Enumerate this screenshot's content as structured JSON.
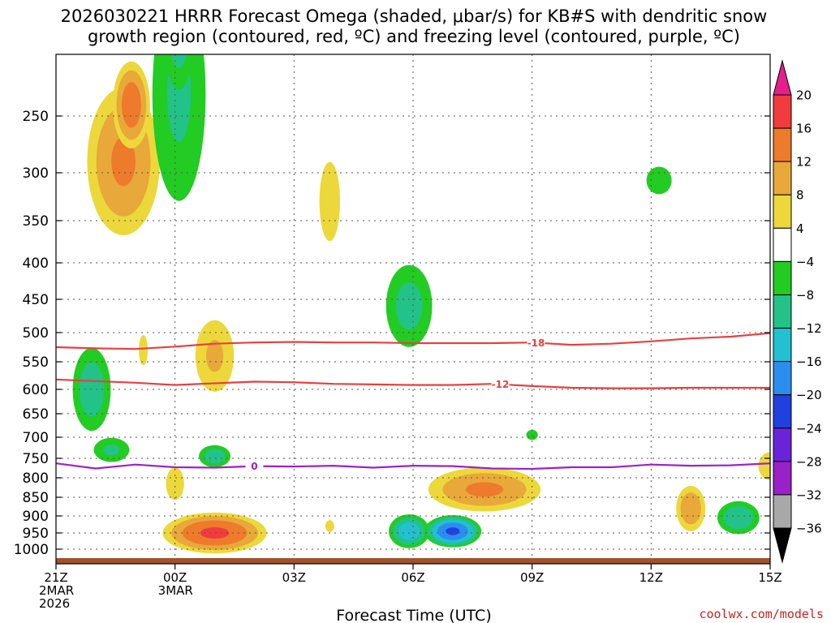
{
  "chart_data": {
    "type": "time-height contour",
    "title_line1": "2026030221 HRRR Forecast Omega (shaded, μbar/s) for KB#S with dendritic snow",
    "title_line2": "growth region (contoured, red, ºC) and freezing level (contoured, purple, ºC)",
    "xlabel": "Forecast Time (UTC)",
    "credit": "coolwx.com/models",
    "x_range_hours": [
      0,
      18
    ],
    "x_ticks": [
      {
        "hour": 0,
        "lines": [
          "21Z",
          "2MAR",
          "2026"
        ]
      },
      {
        "hour": 3,
        "lines": [
          "00Z",
          "3MAR"
        ]
      },
      {
        "hour": 6,
        "lines": [
          "03Z"
        ]
      },
      {
        "hour": 9,
        "lines": [
          "06Z"
        ]
      },
      {
        "hour": 12,
        "lines": [
          "09Z"
        ]
      },
      {
        "hour": 15,
        "lines": [
          "12Z"
        ]
      },
      {
        "hour": 18,
        "lines": [
          "15Z"
        ]
      }
    ],
    "y_ticks_hPa": [
      250,
      300,
      350,
      400,
      450,
      500,
      550,
      600,
      650,
      700,
      750,
      800,
      850,
      900,
      950,
      1000
    ],
    "y_range_hPa": [
      200,
      1030
    ],
    "colorbar": {
      "labels": [
        "20",
        "16",
        "12",
        "8",
        "4",
        "−4",
        "−8",
        "−12",
        "−16",
        "−20",
        "−24",
        "−28",
        "−32",
        "−36"
      ],
      "bins": [
        {
          "lo": 16,
          "hi": 20,
          "color": "#f03c3c"
        },
        {
          "lo": 12,
          "hi": 16,
          "color": "#ee7a2c"
        },
        {
          "lo": 8,
          "hi": 12,
          "color": "#e8a83a"
        },
        {
          "lo": 4,
          "hi": 8,
          "color": "#ecd83a"
        },
        {
          "lo": -4,
          "hi": 4,
          "color": "#ffffff"
        },
        {
          "lo": -8,
          "hi": -4,
          "color": "#22cc22"
        },
        {
          "lo": -12,
          "hi": -8,
          "color": "#22c288"
        },
        {
          "lo": -16,
          "hi": -12,
          "color": "#22c0d0"
        },
        {
          "lo": -20,
          "hi": -16,
          "color": "#2a8ef0"
        },
        {
          "lo": -24,
          "hi": -20,
          "color": "#2040e0"
        },
        {
          "lo": -28,
          "hi": -24,
          "color": "#6a24d8"
        },
        {
          "lo": -32,
          "hi": -28,
          "color": "#9a20c8"
        },
        {
          "lo": -36,
          "hi": -32,
          "color": "#a8a8a8"
        }
      ],
      "over_color": "#e61e8c",
      "under_color": "#000000"
    },
    "isotherms": [
      {
        "name": "-18",
        "label": "-18",
        "color": "#e84040",
        "label_hour": 12.1,
        "points": [
          [
            0,
            525
          ],
          [
            1,
            527
          ],
          [
            2,
            528
          ],
          [
            3,
            524
          ],
          [
            4,
            519
          ],
          [
            5,
            517
          ],
          [
            6,
            516
          ],
          [
            7,
            517
          ],
          [
            8,
            517
          ],
          [
            9,
            518
          ],
          [
            10,
            518
          ],
          [
            11,
            518
          ],
          [
            12,
            517
          ],
          [
            13,
            521
          ],
          [
            14,
            519
          ],
          [
            15,
            515
          ],
          [
            16,
            510
          ],
          [
            17,
            507
          ],
          [
            18,
            501
          ]
        ]
      },
      {
        "name": "-12",
        "label": "-12",
        "color": "#e84040",
        "label_hour": 11.2,
        "points": [
          [
            0,
            582
          ],
          [
            1,
            585
          ],
          [
            2,
            588
          ],
          [
            3,
            592
          ],
          [
            4,
            589
          ],
          [
            5,
            586
          ],
          [
            6,
            587
          ],
          [
            7,
            590
          ],
          [
            8,
            591
          ],
          [
            9,
            592
          ],
          [
            10,
            592
          ],
          [
            11,
            590
          ],
          [
            12,
            594
          ],
          [
            13,
            597
          ],
          [
            14,
            598
          ],
          [
            15,
            598
          ],
          [
            16,
            597
          ],
          [
            17,
            597
          ],
          [
            18,
            597
          ]
        ]
      },
      {
        "name": "0",
        "label": "0",
        "color": "#a020c8",
        "label_hour": 5.0,
        "points": [
          [
            0,
            763
          ],
          [
            1,
            776
          ],
          [
            2,
            766
          ],
          [
            3,
            773
          ],
          [
            4,
            774
          ],
          [
            5,
            770
          ],
          [
            6,
            771
          ],
          [
            7,
            769
          ],
          [
            8,
            774
          ],
          [
            9,
            769
          ],
          [
            10,
            770
          ],
          [
            11,
            776
          ],
          [
            12,
            777
          ],
          [
            13,
            773
          ],
          [
            14,
            773
          ],
          [
            15,
            766
          ],
          [
            16,
            769
          ],
          [
            17,
            768
          ],
          [
            18,
            763
          ]
        ]
      }
    ],
    "omega_cells": [
      {
        "t": 1.7,
        "p": 290,
        "dt": 1.1,
        "dp": 95,
        "peak": 13
      },
      {
        "t": 1.9,
        "p": 240,
        "dt": 0.55,
        "dp": 45,
        "peak": 15
      },
      {
        "t": 3.1,
        "p": 230,
        "dt": 0.9,
        "dp": 140,
        "peak": -9
      },
      {
        "t": 3.1,
        "p": 170,
        "dt": 0.5,
        "dp": 70,
        "peak": -11
      },
      {
        "t": 6.9,
        "p": 330,
        "dt": 0.45,
        "dp": 80,
        "peak": 6
      },
      {
        "t": 15.2,
        "p": 308,
        "dt": 0.55,
        "dp": 25,
        "peak": -6
      },
      {
        "t": 8.9,
        "p": 460,
        "dt": 0.75,
        "dp": 85,
        "peak": -10
      },
      {
        "t": 0.9,
        "p": 600,
        "dt": 0.6,
        "dp": 110,
        "peak": -11
      },
      {
        "t": 1.4,
        "p": 730,
        "dt": 0.6,
        "dp": 40,
        "peak": -9
      },
      {
        "t": 2.2,
        "p": 530,
        "dt": 0.25,
        "dp": 60,
        "peak": 5
      },
      {
        "t": 4.0,
        "p": 540,
        "dt": 0.65,
        "dp": 90,
        "peak": 9
      },
      {
        "t": 4.0,
        "p": 745,
        "dt": 0.5,
        "dp": 35,
        "peak": -11
      },
      {
        "t": 3.0,
        "p": 815,
        "dt": 0.35,
        "dp": 65,
        "peak": 7
      },
      {
        "t": 4.0,
        "p": 950,
        "dt": 1.5,
        "dp": 70,
        "peak": 17
      },
      {
        "t": 6.9,
        "p": 930,
        "dt": 0.25,
        "dp": 40,
        "peak": 5
      },
      {
        "t": 8.9,
        "p": 945,
        "dt": 0.6,
        "dp": 60,
        "peak": -15
      },
      {
        "t": 10.0,
        "p": 945,
        "dt": 0.8,
        "dp": 55,
        "peak": -21
      },
      {
        "t": 10.8,
        "p": 830,
        "dt": 1.7,
        "dp": 70,
        "peak": 13
      },
      {
        "t": 12.0,
        "p": 695,
        "dt": 0.25,
        "dp": 20,
        "peak": -6
      },
      {
        "t": 16.0,
        "p": 880,
        "dt": 0.45,
        "dp": 80,
        "peak": 12
      },
      {
        "t": 17.2,
        "p": 905,
        "dt": 0.65,
        "dp": 60,
        "peak": -12
      },
      {
        "t": 18.0,
        "p": 770,
        "dt": 0.45,
        "dp": 55,
        "peak": 7
      }
    ]
  }
}
